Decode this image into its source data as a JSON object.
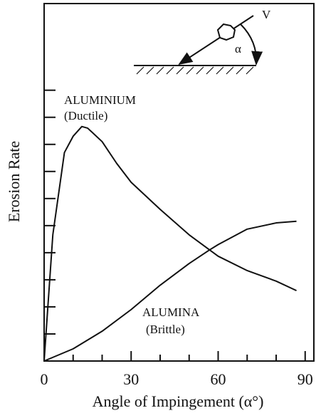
{
  "chart_data": {
    "type": "line",
    "x_label": "Angle of Impingement (α°)",
    "y_label": "Erosion Rate",
    "xlim": [
      0,
      93
    ],
    "ylim": [
      0,
      13.2
    ],
    "xticks": [
      0,
      {
        "value": 10,
        "label": null
      },
      {
        "value": 20,
        "label": null
      },
      30,
      {
        "value": 40,
        "label": null
      },
      {
        "value": 50,
        "label": null
      },
      60,
      {
        "value": 70,
        "label": null
      },
      {
        "value": 80,
        "label": null
      },
      90
    ],
    "yticks": [
      {
        "value": 1,
        "label": null
      },
      {
        "value": 2,
        "label": null
      },
      {
        "value": 3,
        "label": null
      },
      {
        "value": 4,
        "label": null
      },
      {
        "value": 5,
        "label": null
      },
      {
        "value": 6,
        "label": null
      },
      {
        "value": 7,
        "label": null
      },
      {
        "value": 8,
        "label": null
      },
      {
        "value": 9,
        "label": null
      },
      {
        "value": 10,
        "label": null
      }
    ],
    "series": [
      {
        "name": "ALUMINIUM",
        "subname": "(Ductile)",
        "color": "#111111",
        "x": [
          0,
          3,
          7,
          10,
          13,
          15,
          20,
          25,
          30,
          40,
          50,
          60,
          70,
          80,
          87
        ],
        "values": [
          0,
          4.66,
          7.7,
          8.3,
          8.66,
          8.6,
          8.1,
          7.3,
          6.6,
          5.6,
          4.66,
          3.87,
          3.34,
          2.95,
          2.6
        ]
      },
      {
        "name": "ALUMINA",
        "subname": "(Brittle)",
        "color": "#111111",
        "x": [
          0,
          10,
          20,
          30,
          40,
          50,
          57,
          60,
          70,
          80,
          87
        ],
        "values": [
          0,
          0.45,
          1.1,
          1.9,
          2.8,
          3.6,
          4.1,
          4.3,
          4.87,
          5.1,
          5.16
        ]
      }
    ],
    "inset_labels": [
      "V",
      "α"
    ]
  }
}
